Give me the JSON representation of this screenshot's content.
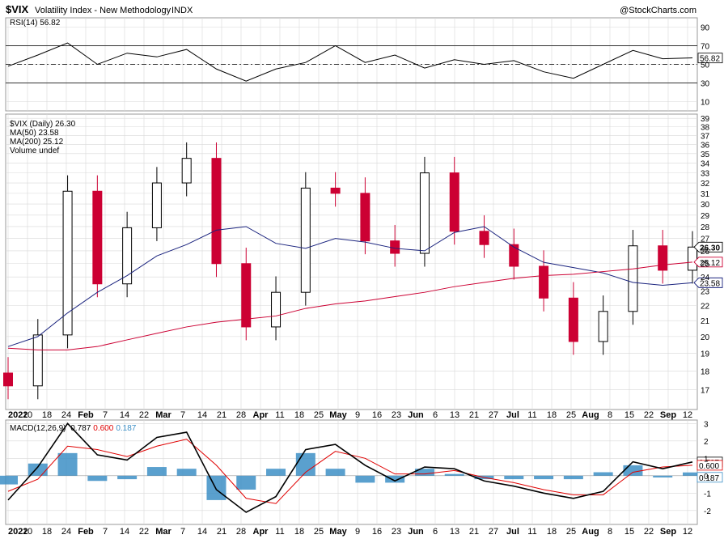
{
  "header": {
    "symbol": "$VIX",
    "name": "Volatility Index - New Methodology",
    "exchange": "INDX",
    "watermark": "@StockCharts.com"
  },
  "colors": {
    "candle_up": "#000000",
    "candle_down": "#cc0033",
    "ma50": "#1a237e",
    "ma200": "#cc0033",
    "macd_line": "#000000",
    "signal_line": "#e00000",
    "histogram": "#3d8fc6",
    "grid": "#d8d8d8"
  },
  "chart_data": [
    {
      "type": "line",
      "panel": "rsi",
      "label": "RSI(14) 56.82",
      "current_value": "56.82",
      "ylim": [
        0,
        100
      ],
      "y_ticks": [
        "90",
        "70",
        "50",
        "30",
        "10"
      ],
      "reference_lines": [
        70,
        50,
        30
      ],
      "x": [
        "Jan 3",
        "Jan 14",
        "Jan 24",
        "Feb 2",
        "Feb 14",
        "Feb 24",
        "Mar 7",
        "Mar 18",
        "Mar 30",
        "Apr 11",
        "Apr 25",
        "May 6",
        "May 16",
        "May 27",
        "Jun 13",
        "Jun 24",
        "Jul 6",
        "Jul 18",
        "Jul 29",
        "Aug 12",
        "Aug 22",
        "Aug 31",
        "Sep 12",
        "Sep 21"
      ],
      "values": [
        48,
        60,
        73,
        50,
        62,
        58,
        66,
        45,
        32,
        45,
        52,
        70,
        52,
        60,
        46,
        55,
        50,
        54,
        42,
        35,
        50,
        65,
        56,
        57
      ]
    },
    {
      "type": "candlestick",
      "panel": "price",
      "legend": [
        {
          "label": "$VIX (Daily) 26.30",
          "color": "#000000"
        },
        {
          "label": "MA(50) 23.58",
          "color": "#1a237e"
        },
        {
          "label": "MA(200) 25.12",
          "color": "#cc0033"
        },
        {
          "label": "Volume undef",
          "color": "#555555"
        }
      ],
      "ylim": [
        16,
        39.5
      ],
      "log_scale": true,
      "y_ticks": [
        "39",
        "38",
        "37",
        "36",
        "35",
        "34",
        "33",
        "32",
        "31",
        "30",
        "29",
        "28",
        "27",
        "26",
        "25",
        "24",
        "23",
        "22",
        "21",
        "20",
        "19",
        "18",
        "17"
      ],
      "price_tags": [
        "26.30",
        "25.12",
        "23.58"
      ],
      "x": [
        "Jan 3",
        "Jan 14",
        "Jan 24",
        "Feb 2",
        "Feb 14",
        "Feb 24",
        "Mar 7",
        "Mar 18",
        "Mar 30",
        "Apr 11",
        "Apr 25",
        "May 6",
        "May 16",
        "May 27",
        "Jun 13",
        "Jun 24",
        "Jul 6",
        "Jul 18",
        "Jul 29",
        "Aug 12",
        "Aug 22",
        "Aug 31",
        "Sep 12",
        "Sep 21"
      ],
      "close": [
        17.2,
        20.1,
        31.2,
        23.5,
        27.9,
        32.0,
        34.5,
        25.0,
        20.6,
        22.9,
        31.5,
        31.0,
        26.8,
        25.8,
        33.0,
        27.6,
        26.5,
        24.8,
        22.5,
        19.7,
        21.6,
        26.4,
        24.5,
        26.3
      ],
      "ma50": [
        19.4,
        20.0,
        21.5,
        22.9,
        24.1,
        25.6,
        26.5,
        27.7,
        28.0,
        26.6,
        26.2,
        27.0,
        26.7,
        26.2,
        26.0,
        27.5,
        28.0,
        26.3,
        25.1,
        24.7,
        24.3,
        23.6,
        23.4,
        23.58
      ],
      "ma200": [
        19.3,
        19.2,
        19.2,
        19.4,
        19.8,
        20.2,
        20.6,
        20.9,
        21.1,
        21.3,
        21.8,
        22.1,
        22.3,
        22.6,
        22.9,
        23.3,
        23.6,
        23.9,
        24.1,
        24.2,
        24.4,
        24.6,
        24.9,
        25.12
      ]
    },
    {
      "type": "line",
      "panel": "macd",
      "label_prefix": "MACD(12,26,9)",
      "macd_value": "0.787",
      "signal_value": "0.600",
      "hist_value": "0.187",
      "ylim": [
        -2.8,
        3.2
      ],
      "y_ticks": [
        "3",
        "2",
        "1",
        "0",
        "-1",
        "-2"
      ],
      "x": [
        "Jan 3",
        "Jan 14",
        "Jan 24",
        "Feb 2",
        "Feb 14",
        "Feb 24",
        "Mar 7",
        "Mar 18",
        "Mar 30",
        "Apr 11",
        "Apr 25",
        "May 6",
        "May 16",
        "May 27",
        "Jun 13",
        "Jun 24",
        "Jul 6",
        "Jul 18",
        "Jul 29",
        "Aug 12",
        "Aug 22",
        "Aug 31",
        "Sep 12",
        "Sep 21"
      ],
      "macd": [
        -1.4,
        0.5,
        3.0,
        1.2,
        0.9,
        2.2,
        2.5,
        -0.8,
        -2.1,
        -1.2,
        1.5,
        1.8,
        0.6,
        -0.3,
        0.5,
        0.4,
        -0.3,
        -0.6,
        -1.0,
        -1.3,
        -0.9,
        0.8,
        0.4,
        0.79
      ],
      "signal": [
        -0.9,
        -0.2,
        1.7,
        1.5,
        1.1,
        1.7,
        2.1,
        0.6,
        -1.3,
        -1.6,
        0.2,
        1.4,
        1.0,
        0.1,
        0.1,
        0.3,
        -0.1,
        -0.4,
        -0.8,
        -1.1,
        -1.1,
        0.2,
        0.5,
        0.6
      ]
    }
  ],
  "x_axis_labels": [
    {
      "text": "2022",
      "bold": true
    },
    {
      "text": "10"
    },
    {
      "text": "18"
    },
    {
      "text": "24"
    },
    {
      "text": "Feb",
      "bold": true
    },
    {
      "text": "7"
    },
    {
      "text": "14"
    },
    {
      "text": "22"
    },
    {
      "text": "Mar",
      "bold": true
    },
    {
      "text": "7"
    },
    {
      "text": "14"
    },
    {
      "text": "21"
    },
    {
      "text": "28"
    },
    {
      "text": "Apr",
      "bold": true
    },
    {
      "text": "11"
    },
    {
      "text": "18"
    },
    {
      "text": "25"
    },
    {
      "text": "May",
      "bold": true
    },
    {
      "text": "9"
    },
    {
      "text": "16"
    },
    {
      "text": "23"
    },
    {
      "text": "Jun",
      "bold": true
    },
    {
      "text": "6"
    },
    {
      "text": "13"
    },
    {
      "text": "21"
    },
    {
      "text": "27"
    },
    {
      "text": "Jul",
      "bold": true
    },
    {
      "text": "11"
    },
    {
      "text": "18"
    },
    {
      "text": "25"
    },
    {
      "text": "Aug",
      "bold": true
    },
    {
      "text": "8"
    },
    {
      "text": "15"
    },
    {
      "text": "22"
    },
    {
      "text": "Sep",
      "bold": true
    },
    {
      "text": "12"
    }
  ]
}
